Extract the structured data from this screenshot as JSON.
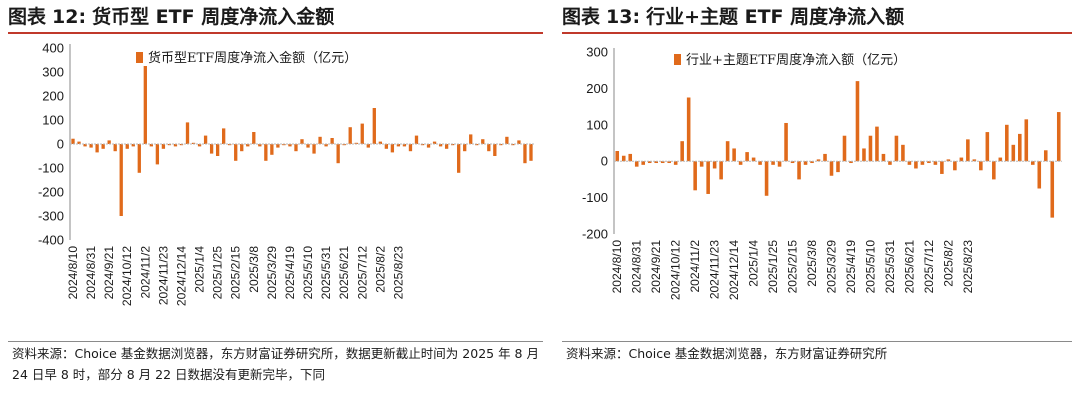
{
  "colors": {
    "bar": "#e06a1b",
    "title_rule": "#c0392b",
    "axis": "#888888"
  },
  "figures": [
    {
      "label": "图表",
      "number": "12:",
      "name": "货币型 ETF 周度净流入金额",
      "source": "资料来源：Choice 基金数据浏览器，东方财富证券研究所，数据更新截止时间为 2025 年 8 月 24 日早 8 时，部分 8 月 22 日数据没有更新完毕，下同"
    },
    {
      "label": "图表",
      "number": "13:",
      "name": "行业+主题 ETF 周度净流入额",
      "source": "资料来源：Choice 基金数据浏览器，东方财富证券研究所"
    }
  ],
  "chart_data": [
    {
      "type": "bar",
      "title": "",
      "legend": "货币型ETF周度净流入金额（亿元）",
      "legend_position": "top",
      "ylim": [
        -400,
        400
      ],
      "yticks": [
        400,
        300,
        200,
        100,
        0,
        -100,
        -200,
        -300,
        -400
      ],
      "xtick_labels": [
        "2024/8/10",
        "2024/8/31",
        "2024/9/21",
        "2024/10/12",
        "2024/11/2",
        "2024/11/23",
        "2024/12/14",
        "2025/1/4",
        "2025/1/25",
        "2025/2/15",
        "2025/3/8",
        "2025/3/29",
        "2025/4/19",
        "2025/5/10",
        "2025/5/31",
        "2025/6/21",
        "2025/7/12",
        "2025/8/2",
        "2025/8/23"
      ],
      "xtick_every": 3,
      "grid": false,
      "series": [
        {
          "name": "货币型ETF周度净流入金额（亿元）",
          "values": [
            22,
            10,
            -10,
            -15,
            -35,
            -20,
            15,
            -30,
            -300,
            -20,
            -10,
            -120,
            325,
            -10,
            -85,
            -20,
            -5,
            -10,
            -5,
            90,
            5,
            -10,
            35,
            -40,
            -50,
            65,
            -5,
            -70,
            -30,
            -10,
            50,
            -10,
            -70,
            -45,
            -15,
            -5,
            -10,
            -30,
            20,
            -15,
            -40,
            30,
            -10,
            25,
            -80,
            -5,
            70,
            5,
            85,
            -15,
            150,
            10,
            -20,
            -35,
            -10,
            -10,
            -30,
            35,
            -5,
            -15,
            10,
            -10,
            -20,
            -5,
            -120,
            -30,
            40,
            -5,
            20,
            -30,
            -50,
            -5,
            30,
            -5,
            15,
            -80,
            -70
          ]
        }
      ]
    },
    {
      "type": "bar",
      "title": "",
      "legend": "行业+主题ETF周度净流入额（亿元）",
      "legend_position": "top",
      "ylim": [
        -200,
        300
      ],
      "yticks": [
        300,
        200,
        100,
        0,
        -100,
        -200
      ],
      "xtick_labels": [
        "2024/8/10",
        "2024/8/31",
        "2024/9/21",
        "2024/10/12",
        "2024/11/2",
        "2024/11/23",
        "2024/12/14",
        "2025/1/4",
        "2025/1/25",
        "2025/2/15",
        "2025/3/8",
        "2025/3/29",
        "2025/4/19",
        "2025/5/10",
        "2025/5/31",
        "2025/6/21",
        "2025/7/12",
        "2025/8/2",
        "2025/8/23"
      ],
      "xtick_every": 3,
      "grid": false,
      "series": [
        {
          "name": "行业+主题ETF周度净流入额（亿元）",
          "values": [
            28,
            15,
            20,
            -15,
            -10,
            -5,
            -5,
            -5,
            -5,
            -10,
            55,
            175,
            -80,
            -15,
            -90,
            -20,
            -50,
            55,
            35,
            -10,
            25,
            10,
            -10,
            -95,
            -10,
            -15,
            105,
            -5,
            -50,
            -10,
            -5,
            5,
            20,
            -40,
            -30,
            70,
            -5,
            220,
            35,
            70,
            95,
            20,
            -10,
            70,
            45,
            -10,
            -20,
            -10,
            -5,
            -10,
            -35,
            5,
            -25,
            10,
            60,
            5,
            -25,
            80,
            -50,
            10,
            100,
            45,
            75,
            115,
            -10,
            -75,
            30,
            -155,
            135
          ]
        }
      ]
    }
  ]
}
